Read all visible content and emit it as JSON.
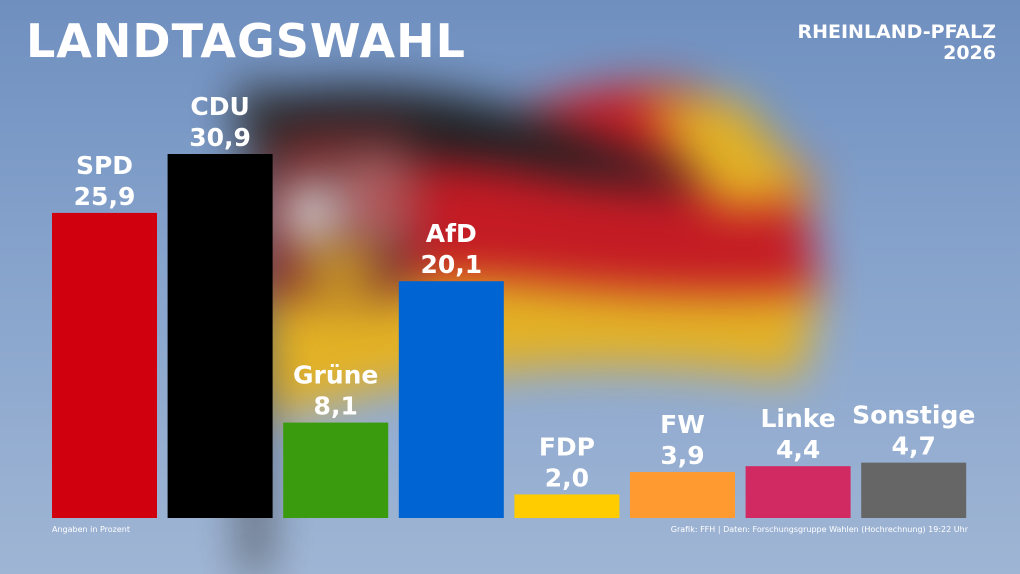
{
  "header": {
    "title": "LANDTAGSWAHL",
    "region_line1": "RHEINLAND-PFALZ",
    "region_line2": "2026"
  },
  "footer": {
    "note": "Angaben in Prozent",
    "source": "Grafik: FFH | Daten: Forschungsgruppe Wahlen (Hochrechnung) 19:22 Uhr"
  },
  "chart_data": {
    "type": "bar",
    "categories": [
      "SPD",
      "CDU",
      "Grüne",
      "AfD",
      "FDP",
      "FW",
      "Linke",
      "Sonstige"
    ],
    "values": [
      25.9,
      30.9,
      8.1,
      20.1,
      2.0,
      3.9,
      4.4,
      4.7
    ],
    "value_labels": [
      "25,9",
      "30,9",
      "8,1",
      "20,1",
      "2,0",
      "3,9",
      "4,4",
      "4,7"
    ],
    "colors": [
      "#d0000f",
      "#000000",
      "#3a9b0e",
      "#0064d2",
      "#ffcc00",
      "#ff9a31",
      "#d12a63",
      "#666666"
    ],
    "unit": "Prozent",
    "ylim": [
      0,
      30.9
    ],
    "grid": false,
    "legend": "none"
  }
}
